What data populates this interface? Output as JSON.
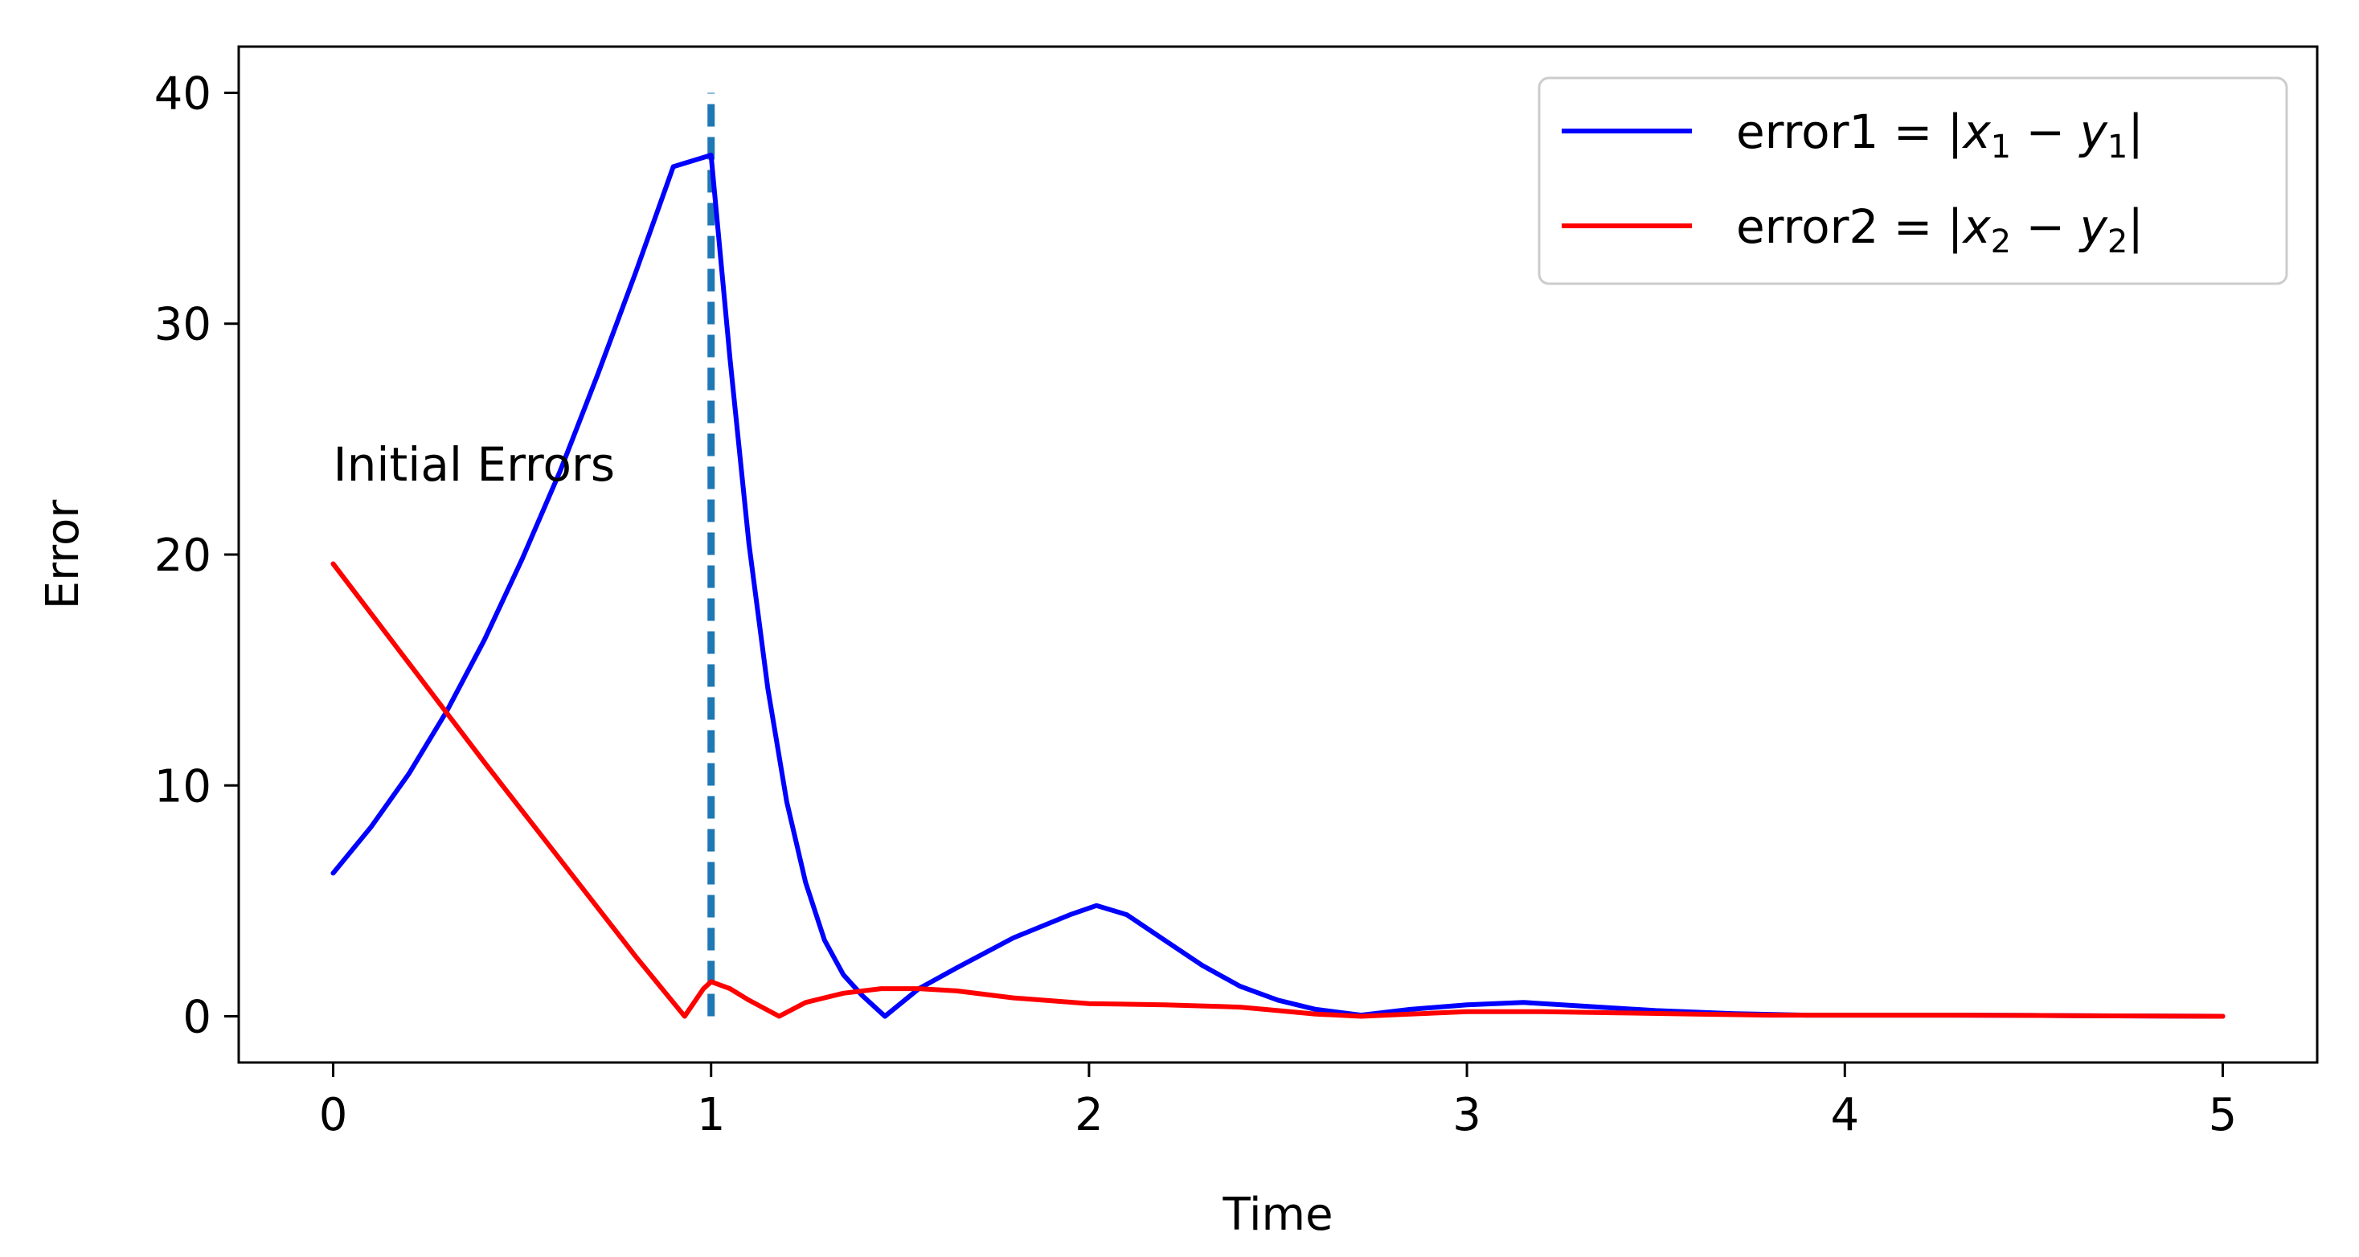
{
  "chart_data": {
    "type": "line",
    "title": "",
    "xlabel": "Time",
    "ylabel": "Error",
    "xlim": [
      -0.25,
      5.25
    ],
    "ylim": [
      -2,
      42
    ],
    "x_ticks": [
      0,
      1,
      2,
      3,
      4,
      5
    ],
    "x_tick_labels": [
      "0",
      "1",
      "2",
      "3",
      "4",
      "5"
    ],
    "y_ticks": [
      0,
      10,
      20,
      30,
      40
    ],
    "y_tick_labels": [
      "0",
      "10",
      "20",
      "30",
      "40"
    ],
    "grid": false,
    "legend_position": "top-right",
    "series": [
      {
        "name": "error1 = |x1 − y1|",
        "legend": {
          "prefix": "error1 = |",
          "var1": "x",
          "sub1": "1",
          "minus": " − ",
          "var2": "y",
          "sub2": "1",
          "suffix": "|"
        },
        "color": "#0000ff",
        "x": [
          0,
          0.1,
          0.2,
          0.3,
          0.4,
          0.5,
          0.6,
          0.7,
          0.8,
          0.9,
          1.0,
          1.05,
          1.1,
          1.15,
          1.2,
          1.25,
          1.3,
          1.35,
          1.4,
          1.46,
          1.55,
          1.65,
          1.8,
          1.95,
          2.02,
          2.1,
          2.2,
          2.3,
          2.4,
          2.5,
          2.6,
          2.72,
          2.85,
          3.0,
          3.15,
          3.3,
          3.5,
          3.7,
          3.9,
          4.1,
          4.3,
          4.5,
          4.7,
          5.0
        ],
        "y": [
          6.2,
          8.2,
          10.5,
          13.2,
          16.3,
          19.8,
          23.6,
          27.8,
          32.2,
          36.8,
          37.3,
          28.5,
          20.5,
          14.2,
          9.3,
          5.8,
          3.3,
          1.8,
          0.9,
          0.0,
          1.2,
          2.1,
          3.4,
          4.4,
          4.8,
          4.4,
          3.3,
          2.2,
          1.3,
          0.7,
          0.3,
          0.05,
          0.3,
          0.5,
          0.6,
          0.45,
          0.25,
          0.12,
          0.05,
          0.05,
          0.05,
          0.04,
          0.02,
          0.0
        ]
      },
      {
        "name": "error2 = |x2 − y2|",
        "legend": {
          "prefix": "error2 = |",
          "var1": "x",
          "sub1": "2",
          "minus": " − ",
          "var2": "y",
          "sub2": "2",
          "suffix": "|"
        },
        "color": "#ff0000",
        "x": [
          0,
          0.2,
          0.4,
          0.6,
          0.8,
          0.93,
          0.98,
          1.0,
          1.05,
          1.1,
          1.18,
          1.25,
          1.35,
          1.45,
          1.55,
          1.65,
          1.8,
          2.0,
          2.2,
          2.4,
          2.5,
          2.6,
          2.72,
          2.85,
          3.0,
          3.2,
          3.4,
          3.6,
          3.8,
          4.0,
          4.3,
          4.6,
          5.0
        ],
        "y": [
          19.6,
          15.3,
          11.0,
          6.8,
          2.6,
          0.0,
          1.2,
          1.5,
          1.2,
          0.7,
          0.0,
          0.6,
          1.0,
          1.2,
          1.2,
          1.1,
          0.8,
          0.55,
          0.5,
          0.4,
          0.25,
          0.1,
          0.0,
          0.1,
          0.2,
          0.2,
          0.15,
          0.1,
          0.05,
          0.05,
          0.05,
          0.03,
          0.0
        ]
      }
    ],
    "vline": {
      "x": 1,
      "y_from": 0,
      "y_to": 40,
      "color": "#1f77b4",
      "style": "dashed"
    },
    "annotations": [
      {
        "text": "Initial Errors",
        "x": 0.0,
        "y": 23.2
      }
    ]
  }
}
